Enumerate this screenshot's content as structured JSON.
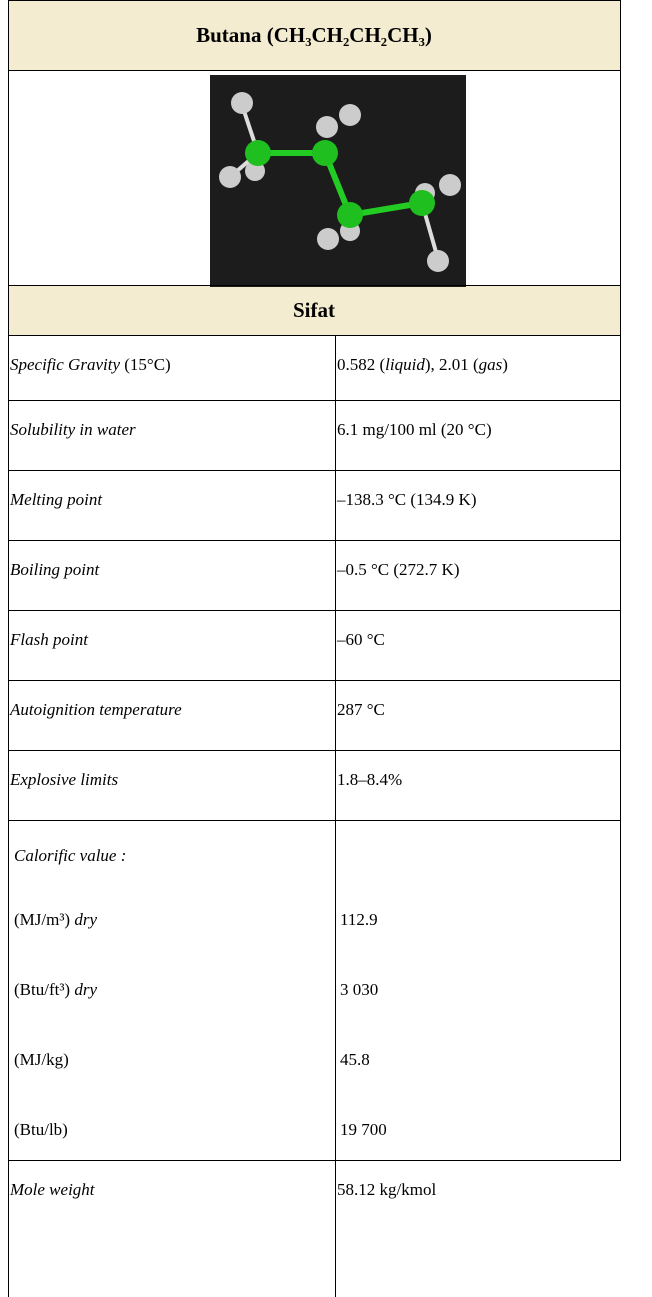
{
  "title": "Butana (CH₃CH₂CH₂CH₃)",
  "section": "Sifat",
  "table": {
    "rows": [
      {
        "label": [
          {
            "t": "Specific Gravity",
            "i": true
          },
          {
            "t": " (15°C)"
          }
        ],
        "value": [
          {
            "t": "0.582 ("
          },
          {
            "t": "liquid",
            "i": true
          },
          {
            "t": "), 2.01 ("
          },
          {
            "t": "gas",
            "i": true
          },
          {
            "t": ")"
          }
        ]
      },
      {
        "label": [
          {
            "t": "Solubility in water",
            "i": true
          }
        ],
        "value": [
          {
            "t": "6.1 mg/100 ml (20 °C)"
          }
        ]
      },
      {
        "label": [
          {
            "t": "Melting point",
            "i": true
          }
        ],
        "value": [
          {
            "t": "–138.3 °C (134.9 K)"
          }
        ]
      },
      {
        "label": [
          {
            "t": "Boiling point",
            "i": true
          }
        ],
        "value": [
          {
            "t": "–0.5 °C (272.7 K)"
          }
        ]
      },
      {
        "label": [
          {
            "t": "Flash point",
            "i": true
          }
        ],
        "value": [
          {
            "t": "–60 °C"
          }
        ]
      },
      {
        "label": [
          {
            "t": "Autoignition temperature",
            "i": true
          }
        ],
        "value": [
          {
            "t": "287 °C"
          }
        ]
      },
      {
        "label": [
          {
            "t": "Explosive limits",
            "i": true
          }
        ],
        "value": [
          {
            "t": "1.8–8.4%"
          }
        ]
      },
      {
        "label": [
          {
            "t": "Calorific value :",
            "i": true
          }
        ],
        "items": [
          {
            "label": [
              {
                "t": "(MJ/m³) "
              },
              {
                "t": "dry",
                "i": true
              }
            ],
            "value": [
              {
                "t": "112.9"
              }
            ]
          },
          {
            "label": [
              {
                "t": "(Btu/ft³) "
              },
              {
                "t": "dry",
                "i": true
              }
            ],
            "value": [
              {
                "t": "3 030"
              }
            ]
          },
          {
            "label": [
              {
                "t": "(MJ/kg)"
              }
            ],
            "value": [
              {
                "t": "45.8"
              }
            ]
          },
          {
            "label": [
              {
                "t": "(Btu/lb)"
              }
            ],
            "value": [
              {
                "t": "19 700"
              }
            ]
          }
        ]
      },
      {
        "label": [
          {
            "t": "Mole weight",
            "i": true
          }
        ],
        "value": [
          {
            "t": "58.12 kg/kmol"
          }
        ]
      }
    ]
  }
}
